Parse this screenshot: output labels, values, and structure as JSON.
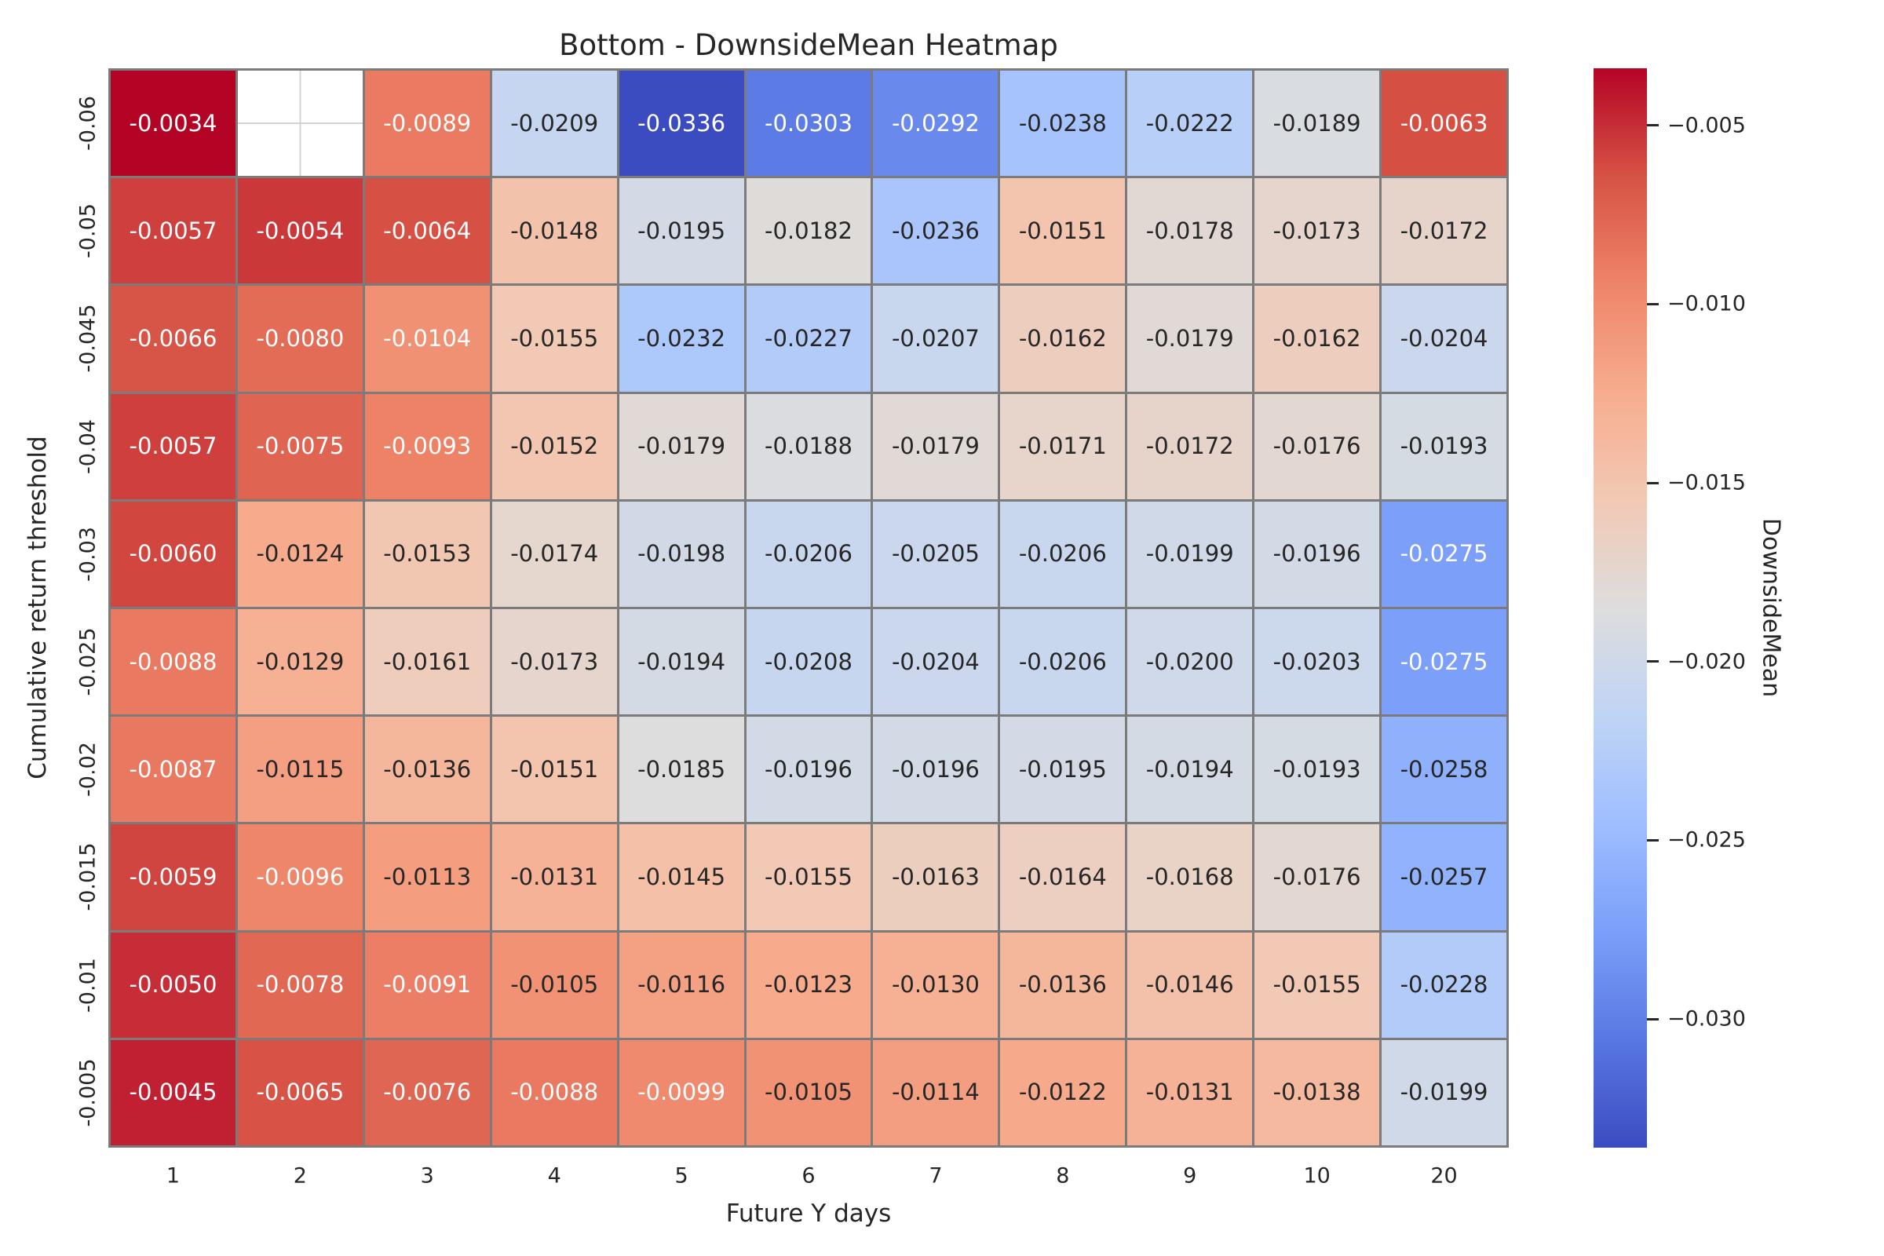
{
  "chart_data": {
    "type": "heatmap",
    "title": "Bottom - DownsideMean Heatmap",
    "xlabel": "Future Y days",
    "ylabel": "Cumulative return threshold",
    "x_categories": [
      "1",
      "2",
      "3",
      "4",
      "5",
      "6",
      "7",
      "8",
      "9",
      "10",
      "20"
    ],
    "y_categories": [
      "-0.06",
      "-0.05",
      "-0.045",
      "-0.04",
      "-0.03",
      "-0.025",
      "-0.02",
      "-0.015",
      "-0.01",
      "-0.005"
    ],
    "values": [
      [
        -0.0034,
        null,
        -0.0089,
        -0.0209,
        -0.0336,
        -0.0303,
        -0.0292,
        -0.0238,
        -0.0222,
        -0.0189,
        -0.0063
      ],
      [
        -0.0057,
        -0.0054,
        -0.0064,
        -0.0148,
        -0.0195,
        -0.0182,
        -0.0236,
        -0.0151,
        -0.0178,
        -0.0173,
        -0.0172
      ],
      [
        -0.0066,
        -0.008,
        -0.0104,
        -0.0155,
        -0.0232,
        -0.0227,
        -0.0207,
        -0.0162,
        -0.0179,
        -0.0162,
        -0.0204
      ],
      [
        -0.0057,
        -0.0075,
        -0.0093,
        -0.0152,
        -0.0179,
        -0.0188,
        -0.0179,
        -0.0171,
        -0.0172,
        -0.0176,
        -0.0193
      ],
      [
        -0.006,
        -0.0124,
        -0.0153,
        -0.0174,
        -0.0198,
        -0.0206,
        -0.0205,
        -0.0206,
        -0.0199,
        -0.0196,
        -0.0275
      ],
      [
        -0.0088,
        -0.0129,
        -0.0161,
        -0.0173,
        -0.0194,
        -0.0208,
        -0.0204,
        -0.0206,
        -0.02,
        -0.0203,
        -0.0275
      ],
      [
        -0.0087,
        -0.0115,
        -0.0136,
        -0.0151,
        -0.0185,
        -0.0196,
        -0.0196,
        -0.0195,
        -0.0194,
        -0.0193,
        -0.0258
      ],
      [
        -0.0059,
        -0.0096,
        -0.0113,
        -0.0131,
        -0.0145,
        -0.0155,
        -0.0163,
        -0.0164,
        -0.0168,
        -0.0176,
        -0.0257
      ],
      [
        -0.005,
        -0.0078,
        -0.0091,
        -0.0105,
        -0.0116,
        -0.0123,
        -0.013,
        -0.0136,
        -0.0146,
        -0.0155,
        -0.0228
      ],
      [
        -0.0045,
        -0.0065,
        -0.0076,
        -0.0088,
        -0.0099,
        -0.0105,
        -0.0114,
        -0.0122,
        -0.0131,
        -0.0138,
        -0.0199
      ]
    ],
    "value_decimals": 4,
    "vmin": -0.0336,
    "vmax": -0.0034,
    "colormap": "coolwarm",
    "grid": false,
    "colorbar": {
      "label": "DownsideMean",
      "position": "right",
      "tick_labels": [
        "−0.005",
        "−0.010",
        "−0.015",
        "−0.020",
        "−0.025",
        "−0.030"
      ],
      "tick_values": [
        -0.005,
        -0.01,
        -0.015,
        -0.02,
        -0.025,
        -0.03
      ]
    },
    "colors": {
      "cmap_low": "#3b4cc0",
      "cmap_mid": "#dddddd",
      "cmap_high": "#b40426",
      "cell_border": "#7b7b7b",
      "annot_dark": "#262626",
      "annot_light": "#ffffff",
      "background": "#ffffff"
    }
  }
}
